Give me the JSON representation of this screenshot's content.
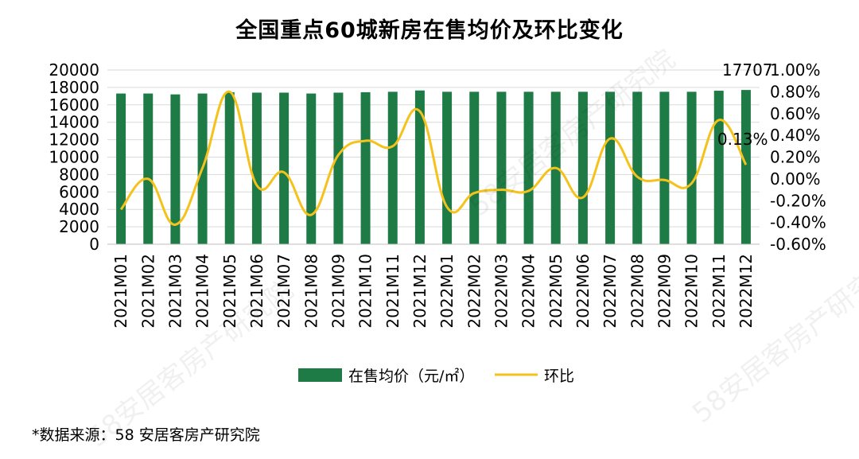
{
  "title": "全国重点60城新房在售均价及环比变化",
  "source": "*数据来源：58 安居客房产研究院",
  "watermark": "58安居客房产研究院",
  "colors": {
    "bar": "#1e7b46",
    "line": "#f5c21b"
  },
  "chart_data": {
    "type": "bar+line",
    "title": "全国重点60城新房在售均价及环比变化",
    "categories": [
      "2021M01",
      "2021M02",
      "2021M03",
      "2021M04",
      "2021M05",
      "2021M06",
      "2021M07",
      "2021M08",
      "2021M09",
      "2021M10",
      "2021M11",
      "2021M12",
      "2022M01",
      "2022M02",
      "2022M03",
      "2022M04",
      "2022M05",
      "2022M06",
      "2022M07",
      "2022M08",
      "2022M09",
      "2022M10",
      "2022M11",
      "2022M12"
    ],
    "series": [
      {
        "name": "在售均价（元/㎡）",
        "type": "bar",
        "axis": "left",
        "values": [
          17300,
          17300,
          17200,
          17300,
          17450,
          17400,
          17400,
          17300,
          17400,
          17450,
          17500,
          17650,
          17500,
          17500,
          17500,
          17500,
          17500,
          17500,
          17500,
          17500,
          17500,
          17500,
          17620,
          17707
        ]
      },
      {
        "name": "环比",
        "type": "line",
        "axis": "right",
        "unit": "%",
        "values": [
          -0.28,
          0.0,
          -0.42,
          0.1,
          0.8,
          -0.06,
          0.06,
          -0.33,
          0.22,
          0.35,
          0.3,
          0.62,
          -0.26,
          -0.13,
          -0.1,
          -0.11,
          0.1,
          -0.17,
          0.37,
          0.02,
          -0.01,
          -0.04,
          0.54,
          0.13
        ]
      }
    ],
    "ylim_left": [
      0,
      20000
    ],
    "yticks_left": [
      "0",
      "2000",
      "4000",
      "6000",
      "8000",
      "10000",
      "12000",
      "14000",
      "16000",
      "18000",
      "20000"
    ],
    "ylim_right": [
      -0.6,
      1.0
    ],
    "yticks_right": [
      "-0.60%",
      "-0.40%",
      "-0.20%",
      "0.00%",
      "0.20%",
      "0.40%",
      "0.60%",
      "0.80%",
      "1.00%"
    ],
    "annotations": [
      {
        "label": "17707",
        "series": "在售均价（元/㎡）",
        "index": 23
      },
      {
        "label": "0.13%",
        "series": "环比",
        "index": 23
      }
    ],
    "legend": {
      "position": "bottom",
      "items": [
        {
          "label": "在售均价（元/㎡）",
          "marker": "bar"
        },
        {
          "label": "环比",
          "marker": "line"
        }
      ]
    },
    "grid": true
  }
}
